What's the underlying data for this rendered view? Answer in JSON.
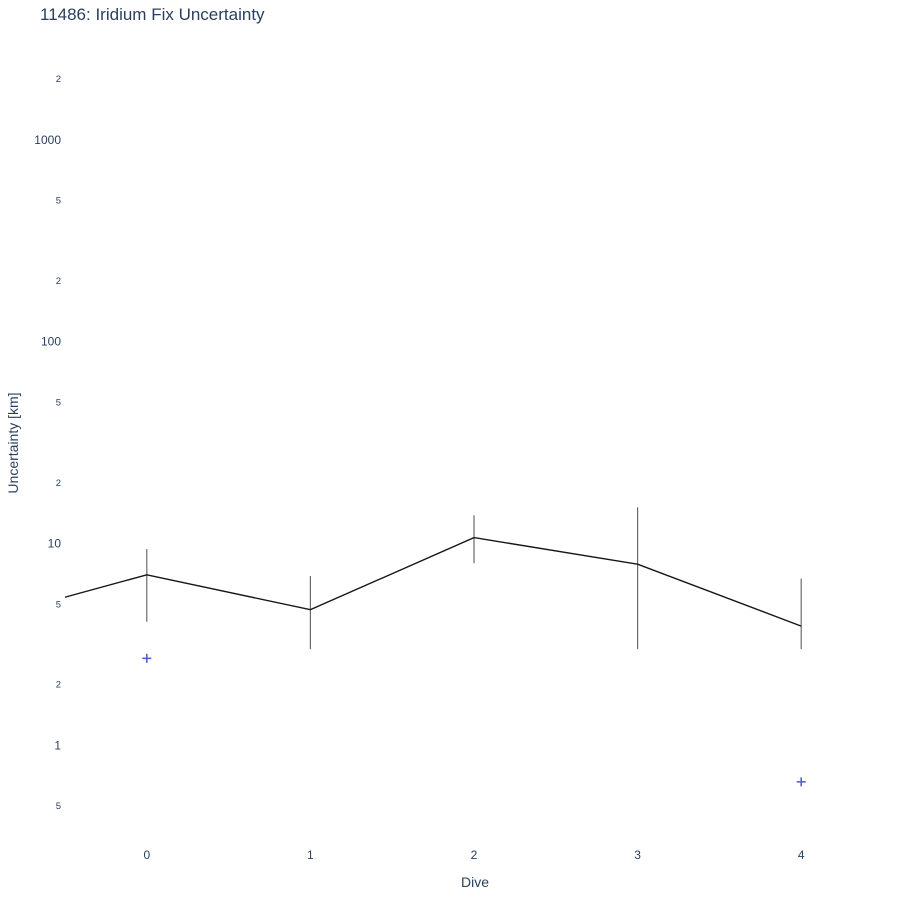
{
  "page": {
    "background": "#ffffff"
  },
  "chart_data": {
    "type": "line",
    "title": "11486: Iridium Fix Uncertainty",
    "xlabel": "Dive",
    "ylabel": "Uncertainty [km]",
    "x_scale": "linear",
    "y_scale": "log",
    "xlim": [
      -0.5,
      4.5
    ],
    "ylim": [
      0.34,
      3500
    ],
    "grid": false,
    "legend": "none",
    "x_ticks": [
      0,
      1,
      2,
      3,
      4
    ],
    "y_ticks": [
      {
        "value": 2000,
        "label": "2",
        "minor": true
      },
      {
        "value": 1000,
        "label": "1000",
        "minor": false
      },
      {
        "value": 500,
        "label": "5",
        "minor": true
      },
      {
        "value": 200,
        "label": "2",
        "minor": true
      },
      {
        "value": 100,
        "label": "100",
        "minor": false
      },
      {
        "value": 50,
        "label": "5",
        "minor": true
      },
      {
        "value": 20,
        "label": "2",
        "minor": true
      },
      {
        "value": 10,
        "label": "10",
        "minor": false
      },
      {
        "value": 5,
        "label": "5",
        "minor": true
      },
      {
        "value": 2,
        "label": "2",
        "minor": true
      },
      {
        "value": 1,
        "label": "1",
        "minor": false
      },
      {
        "value": 0.5,
        "label": "5",
        "minor": true
      }
    ],
    "colors": {
      "text": "#2a3f5f",
      "line": "#161616",
      "error_bar": "#454545",
      "marker": "#5560cf"
    },
    "series": [
      {
        "name": "iridium-fix-uncertainty-line",
        "type": "line",
        "color": "#161616",
        "x": [
          -1,
          0,
          1,
          2,
          3,
          4
        ],
        "y": [
          4.2,
          7.0,
          4.7,
          10.7,
          7.9,
          3.9
        ],
        "error_low": [
          null,
          4.1,
          3.0,
          8.0,
          3.0,
          3.0
        ],
        "error_high": [
          null,
          9.4,
          6.9,
          13.8,
          15.1,
          6.7
        ]
      },
      {
        "name": "outlier-plus-markers",
        "type": "scatter-plus",
        "color": "#5560cf",
        "x": [
          0,
          4
        ],
        "y": [
          2.7,
          0.66
        ]
      }
    ]
  }
}
